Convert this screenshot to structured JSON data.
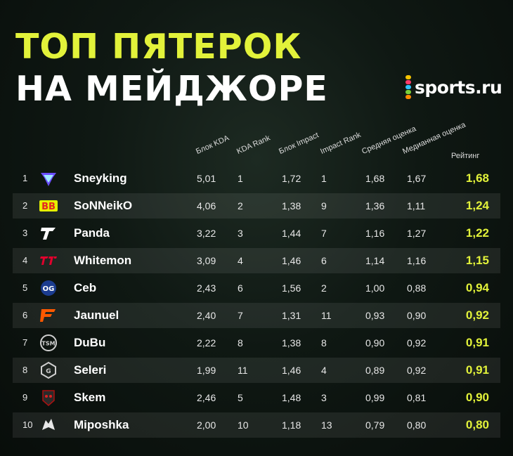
{
  "title": {
    "line1": "ТОП ПЯТЕРОК",
    "line2": "НА МЕЙДЖОРЕ"
  },
  "brand": {
    "name": "sports.ru",
    "dot_colors": [
      "#f5c400",
      "#ff3b6a",
      "#2ec4ff",
      "#7ad03b",
      "#ff8a00"
    ]
  },
  "colors": {
    "accent": "#e2f23a"
  },
  "headers": [
    "Блок KDA",
    "KDA Rank",
    "Блок Impact",
    "Impact Rank",
    "Средняя оценка",
    "Медианная оценка",
    "Рейтинг"
  ],
  "rows": [
    {
      "rank": "1",
      "team_icon": "trovo-logo-icon",
      "player": "Sneyking",
      "kda": "5,01",
      "kda_rank": "1",
      "impact": "1,72",
      "impact_rank": "1",
      "avg": "1,68",
      "median": "1,67",
      "rating": "1,68"
    },
    {
      "rank": "2",
      "team_icon": "betboom-logo-icon",
      "player": "SoNNeikO",
      "kda": "4,06",
      "kda_rank": "2",
      "impact": "1,38",
      "impact_rank": "9",
      "avg": "1,36",
      "median": "1,11",
      "rating": "1,24"
    },
    {
      "rank": "3",
      "team_icon": "talon-logo-icon",
      "player": "Panda",
      "kda": "3,22",
      "kda_rank": "3",
      "impact": "1,44",
      "impact_rank": "7",
      "avg": "1,16",
      "median": "1,27",
      "rating": "1,22"
    },
    {
      "rank": "4",
      "team_icon": "t1-logo-icon",
      "player": "Whitemon",
      "kda": "3,09",
      "kda_rank": "4",
      "impact": "1,46",
      "impact_rank": "6",
      "avg": "1,14",
      "median": "1,16",
      "rating": "1,15"
    },
    {
      "rank": "5",
      "team_icon": "og-logo-icon",
      "player": "Ceb",
      "kda": "2,43",
      "kda_rank": "6",
      "impact": "1,56",
      "impact_rank": "2",
      "avg": "1,00",
      "median": "0,88",
      "rating": "0,94"
    },
    {
      "rank": "6",
      "team_icon": "fnatic-logo-icon",
      "player": "Jaunuel",
      "kda": "2,40",
      "kda_rank": "7",
      "impact": "1,31",
      "impact_rank": "11",
      "avg": "0,93",
      "median": "0,90",
      "rating": "0,92"
    },
    {
      "rank": "7",
      "team_icon": "tsm-logo-icon",
      "player": "DuBu",
      "kda": "2,22",
      "kda_rank": "8",
      "impact": "1,38",
      "impact_rank": "8",
      "avg": "0,90",
      "median": "0,92",
      "rating": "0,91"
    },
    {
      "rank": "8",
      "team_icon": "gaimin-logo-icon",
      "player": "Seleri",
      "kda": "1,99",
      "kda_rank": "11",
      "impact": "1,46",
      "impact_rank": "4",
      "avg": "0,89",
      "median": "0,92",
      "rating": "0,91"
    },
    {
      "rank": "9",
      "team_icon": "boom-logo-icon",
      "player": "Skem",
      "kda": "2,46",
      "kda_rank": "5",
      "impact": "1,48",
      "impact_rank": "3",
      "avg": "0,99",
      "median": "0,81",
      "rating": "0,90"
    },
    {
      "rank": "10",
      "team_icon": "team-spirit-logo-icon",
      "player": "Miposhka",
      "kda": "2,00",
      "kda_rank": "10",
      "impact": "1,18",
      "impact_rank": "13",
      "avg": "0,79",
      "median": "0,80",
      "rating": "0,80"
    }
  ]
}
